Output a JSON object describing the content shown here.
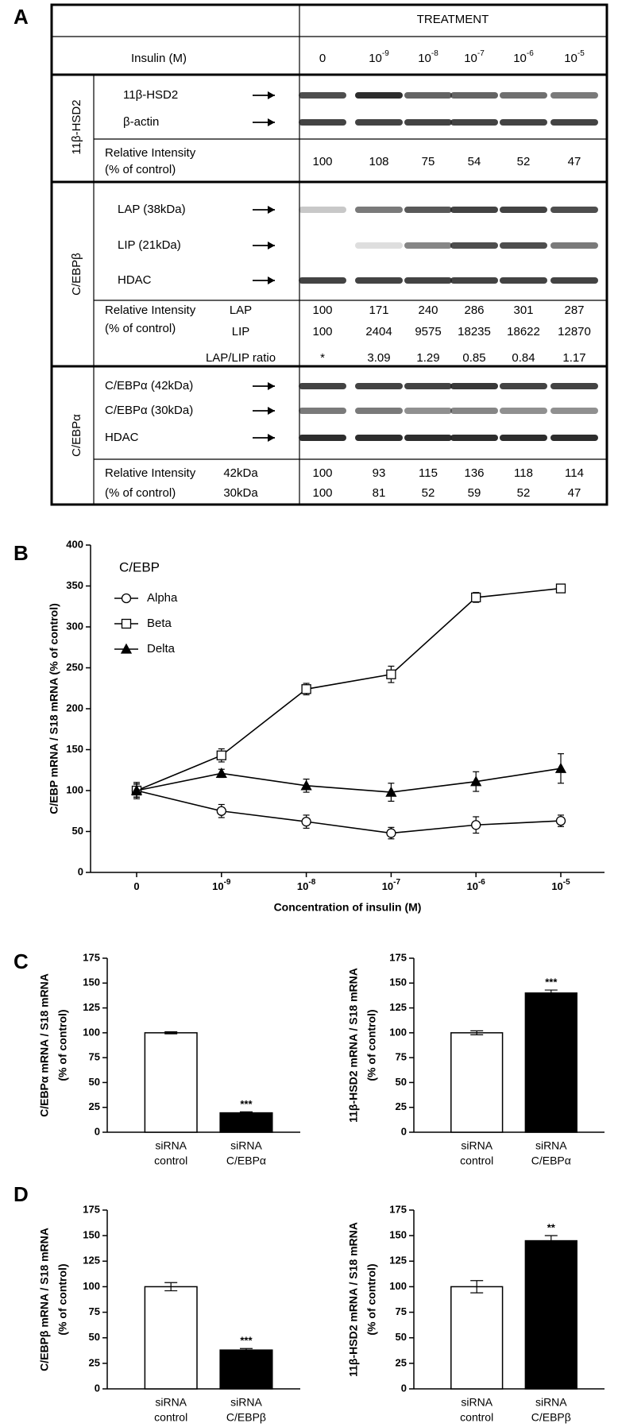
{
  "panel_labels": [
    "A",
    "B",
    "C",
    "D"
  ],
  "panel_a": {
    "header": "TREATMENT",
    "row_header": "Insulin (M)",
    "concentrations": [
      {
        "base": "0"
      },
      {
        "base": "10",
        "exp": "-9"
      },
      {
        "base": "10",
        "exp": "-8"
      },
      {
        "base": "10",
        "exp": "-7"
      },
      {
        "base": "10",
        "exp": "-6"
      },
      {
        "base": "10",
        "exp": "-5"
      }
    ],
    "sections": [
      {
        "label": "11β-HSD2",
        "bands": [
          "11β-HSD2",
          "β-actin"
        ],
        "intensity_label": [
          "Relative Intensity",
          "(% of control)"
        ],
        "rows": [
          {
            "values": [
              100,
              108,
              75,
              54,
              52,
              47
            ]
          }
        ]
      },
      {
        "label": "C/EBPβ",
        "bands": [
          "LAP (38kDa)",
          "LIP (21kDa)",
          "HDAC"
        ],
        "intensity_label": [
          "Relative Intensity",
          "(% of control)"
        ],
        "rows": [
          {
            "name": "LAP",
            "values": [
              100,
              171,
              240,
              286,
              301,
              287
            ]
          },
          {
            "name": "LIP",
            "values": [
              100,
              2404,
              9575,
              18235,
              18622,
              12870
            ]
          },
          {
            "name": "LAP/LIP ratio",
            "values": [
              "*",
              3.09,
              1.29,
              0.85,
              0.84,
              1.17
            ]
          }
        ]
      },
      {
        "label": "C/EBPα",
        "bands": [
          "C/EBPα (42kDa)",
          "C/EBPα (30kDa)",
          "HDAC"
        ],
        "intensity_label": [
          "Relative Intensity",
          "(% of control)"
        ],
        "rows": [
          {
            "name": "42kDa",
            "values": [
              100,
              93,
              115,
              136,
              118,
              114
            ]
          },
          {
            "name": "30kDa",
            "values": [
              100,
              81,
              52,
              59,
              52,
              47
            ]
          }
        ]
      }
    ]
  },
  "chart_data": [
    {
      "type": "line",
      "ylabel": "C/EBP mRNA / S18 mRNA (% of control)",
      "xlabel": "Concentration of insulin (M)",
      "categories": [
        {
          "base": "0"
        },
        {
          "base": "10",
          "exp": "-9"
        },
        {
          "base": "10",
          "exp": "-8"
        },
        {
          "base": "10",
          "exp": "-7"
        },
        {
          "base": "10",
          "exp": "-6"
        },
        {
          "base": "10",
          "exp": "-5"
        }
      ],
      "ylim": [
        0,
        400
      ],
      "yticks": [
        0,
        50,
        100,
        150,
        200,
        250,
        300,
        350,
        400
      ],
      "legend_title": "C/EBP",
      "legend": "upper left",
      "series": [
        {
          "name": "Alpha",
          "marker": "circle-open",
          "color": "#000000",
          "values": [
            100,
            75,
            62,
            48,
            58,
            63
          ],
          "errors": [
            8,
            8,
            8,
            7,
            10,
            7
          ]
        },
        {
          "name": "Beta",
          "marker": "square-open",
          "color": "#000000",
          "values": [
            100,
            143,
            224,
            242,
            336,
            347
          ],
          "errors": [
            8,
            8,
            7,
            10,
            6,
            4
          ]
        },
        {
          "name": "Delta",
          "marker": "triangle-filled",
          "color": "#000000",
          "values": [
            100,
            121,
            106,
            98,
            111,
            127
          ],
          "errors": [
            10,
            5,
            8,
            11,
            12,
            18
          ]
        }
      ]
    },
    {
      "type": "bar",
      "ylabel": [
        "C/EBPα mRNA / S18 mRNA",
        "(% of control)"
      ],
      "categories": [
        [
          "siRNA",
          "control"
        ],
        [
          "siRNA",
          "C/EBPα"
        ]
      ],
      "values": [
        100,
        19.5
      ],
      "errors": [
        1,
        1
      ],
      "colors": [
        "#ffffff",
        "#000000"
      ],
      "annotations": [
        null,
        "***"
      ],
      "ylim": [
        0,
        175
      ],
      "yticks": [
        0,
        25,
        50,
        75,
        100,
        125,
        150,
        175
      ]
    },
    {
      "type": "bar",
      "ylabel": [
        "11β-HSD2 mRNA / S18 mRNA",
        "(% of control)"
      ],
      "categories": [
        [
          "siRNA",
          "control"
        ],
        [
          "siRNA",
          "C/EBPα"
        ]
      ],
      "values": [
        100,
        140
      ],
      "errors": [
        2,
        3
      ],
      "colors": [
        "#ffffff",
        "#000000"
      ],
      "annotations": [
        null,
        "***"
      ],
      "ylim": [
        0,
        175
      ],
      "yticks": [
        0,
        25,
        50,
        75,
        100,
        125,
        150,
        175
      ]
    },
    {
      "type": "bar",
      "ylabel": [
        "C/EBPβ mRNA / S18 mRNA",
        "(% of control)"
      ],
      "categories": [
        [
          "siRNA",
          "control"
        ],
        [
          "siRNA",
          "C/EBPβ"
        ]
      ],
      "values": [
        100,
        38
      ],
      "errors": [
        4,
        1.5
      ],
      "colors": [
        "#ffffff",
        "#000000"
      ],
      "annotations": [
        null,
        "***"
      ],
      "ylim": [
        0,
        175
      ],
      "yticks": [
        0,
        25,
        50,
        75,
        100,
        125,
        150,
        175
      ]
    },
    {
      "type": "bar",
      "ylabel": [
        "11β-HSD2 mRNA / S18 mRNA",
        "(% of control)"
      ],
      "categories": [
        [
          "siRNA",
          "control"
        ],
        [
          "siRNA",
          "C/EBPβ"
        ]
      ],
      "values": [
        100,
        145
      ],
      "errors": [
        6,
        5
      ],
      "colors": [
        "#ffffff",
        "#000000"
      ],
      "annotations": [
        null,
        "**"
      ],
      "ylim": [
        0,
        175
      ],
      "yticks": [
        0,
        25,
        50,
        75,
        100,
        125,
        150,
        175
      ]
    }
  ]
}
